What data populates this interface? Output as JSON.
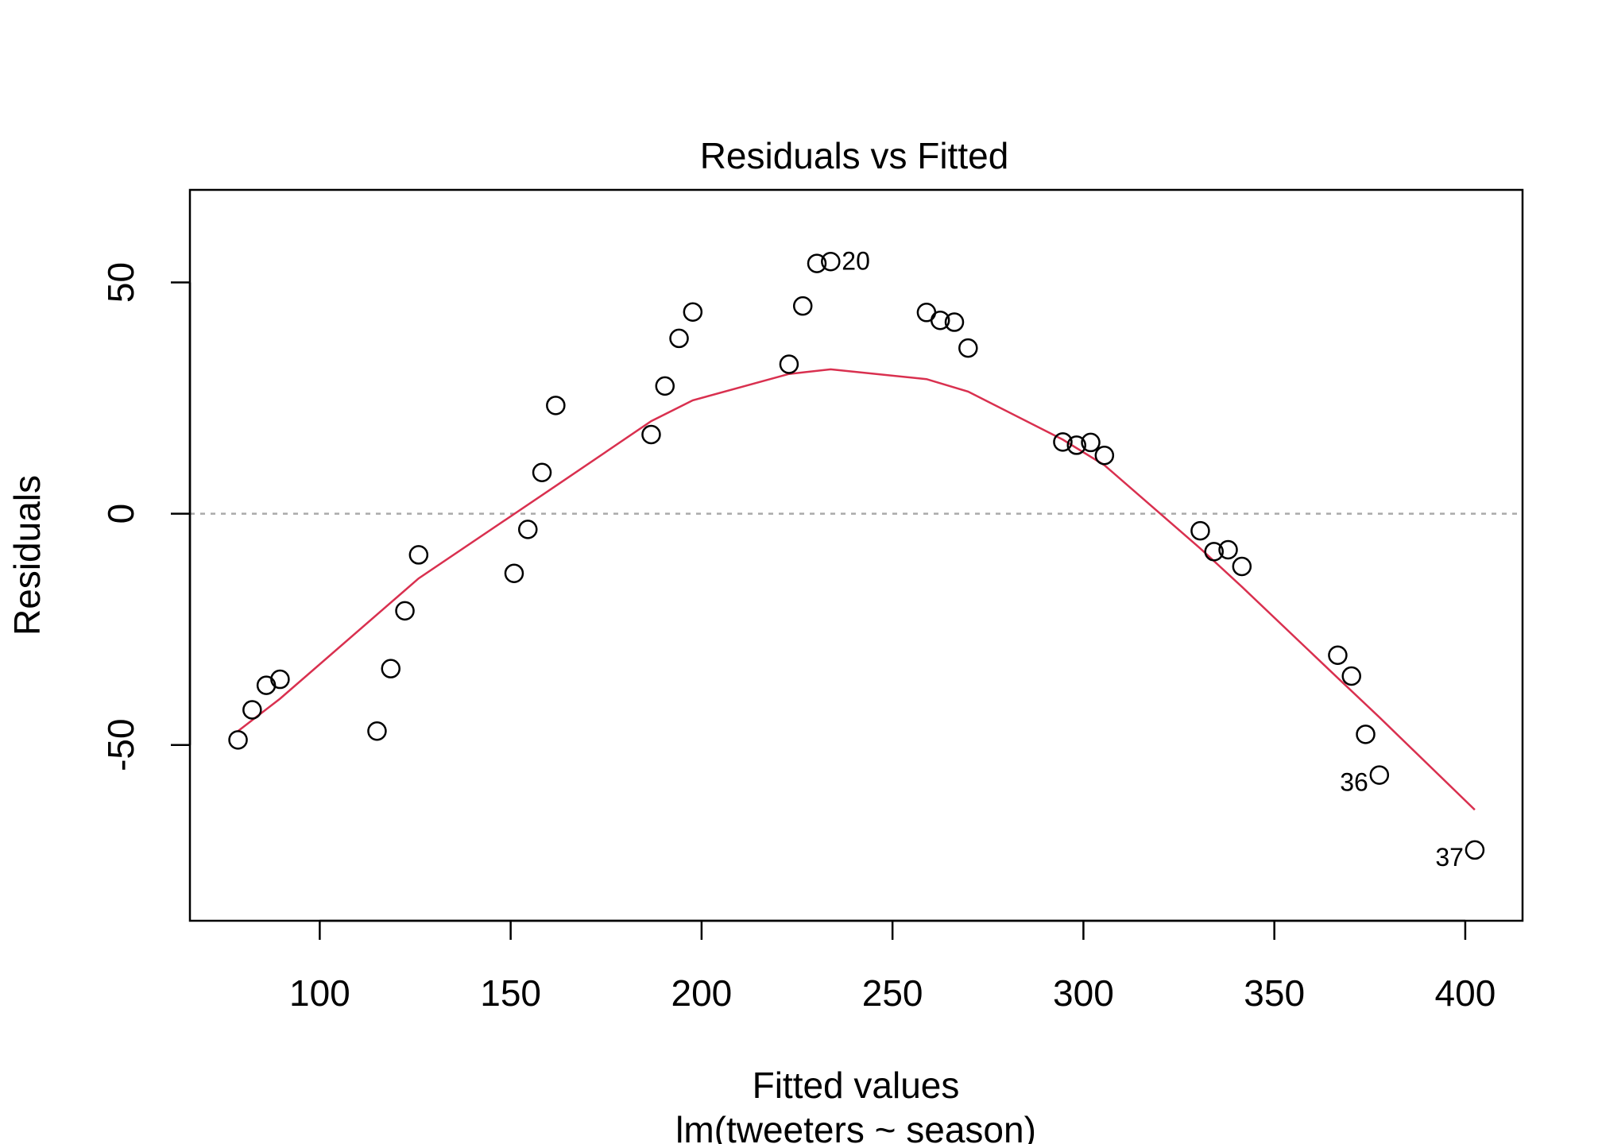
{
  "chart_data": {
    "type": "scatter",
    "title": "Residuals vs Fitted",
    "xlabel": "Fitted values",
    "xsublabel": "lm(tweeters ~ season)",
    "ylabel": "Residuals",
    "xlim": [
      66,
      415
    ],
    "ylim": [
      -88,
      70
    ],
    "xticks": [
      100,
      150,
      200,
      250,
      300,
      350,
      400
    ],
    "yticks": [
      -50,
      0,
      50
    ],
    "xtick_labels": [
      "100",
      "150",
      "200",
      "250",
      "300",
      "350",
      "400"
    ],
    "ytick_labels": [
      "-50",
      "0",
      "50"
    ],
    "grid": false,
    "reference_line": {
      "y": 0,
      "color": "#aaaaaa",
      "style": "dotted"
    },
    "colors": {
      "points": "#000000",
      "smooth": "#d9304f",
      "reference": "#aaaaaa"
    },
    "points": [
      {
        "x": 78.6,
        "y": -48.9
      },
      {
        "x": 82.3,
        "y": -42.4
      },
      {
        "x": 86.0,
        "y": -37.1
      },
      {
        "x": 89.6,
        "y": -35.8
      },
      {
        "x": 115.0,
        "y": -47.0
      },
      {
        "x": 118.6,
        "y": -33.5
      },
      {
        "x": 122.3,
        "y": -21.0
      },
      {
        "x": 125.9,
        "y": -8.9
      },
      {
        "x": 150.9,
        "y": -12.9
      },
      {
        "x": 154.5,
        "y": -3.4
      },
      {
        "x": 158.2,
        "y": 8.9
      },
      {
        "x": 161.8,
        "y": 23.4
      },
      {
        "x": 186.8,
        "y": 17.1
      },
      {
        "x": 190.4,
        "y": 27.6
      },
      {
        "x": 194.1,
        "y": 37.9
      },
      {
        "x": 197.7,
        "y": 43.6
      },
      {
        "x": 222.9,
        "y": 32.3
      },
      {
        "x": 226.5,
        "y": 44.9
      },
      {
        "x": 230.2,
        "y": 54.1
      },
      {
        "x": 233.8,
        "y": 54.5,
        "label": "20"
      },
      {
        "x": 258.9,
        "y": 43.5
      },
      {
        "x": 262.5,
        "y": 41.8
      },
      {
        "x": 266.2,
        "y": 41.4
      },
      {
        "x": 269.8,
        "y": 35.8
      },
      {
        "x": 294.6,
        "y": 15.5
      },
      {
        "x": 298.2,
        "y": 14.8
      },
      {
        "x": 301.9,
        "y": 15.4
      },
      {
        "x": 305.5,
        "y": 12.6
      },
      {
        "x": 330.6,
        "y": -3.7
      },
      {
        "x": 334.2,
        "y": -8.2
      },
      {
        "x": 337.9,
        "y": -7.8
      },
      {
        "x": 341.5,
        "y": -11.4
      },
      {
        "x": 366.6,
        "y": -30.6
      },
      {
        "x": 370.2,
        "y": -35.1
      },
      {
        "x": 373.9,
        "y": -47.7
      },
      {
        "x": 377.5,
        "y": -56.5,
        "label": "36"
      },
      {
        "x": 402.5,
        "y": -72.7,
        "label": "37"
      }
    ],
    "smooth_line": {
      "x": [
        78.6,
        89.6,
        125.9,
        161.8,
        186.8,
        197.7,
        222.9,
        233.8,
        258.9,
        269.8,
        294.6,
        305.5,
        330.6,
        341.5,
        366.6,
        377.5,
        402.5
      ],
      "y": [
        -47.0,
        -40.0,
        -14.0,
        6.0,
        20.0,
        24.5,
        30.2,
        31.2,
        29.1,
        26.4,
        16.0,
        10.5,
        -7.5,
        -15.8,
        -35.5,
        -44.0,
        -64.0
      ]
    }
  }
}
